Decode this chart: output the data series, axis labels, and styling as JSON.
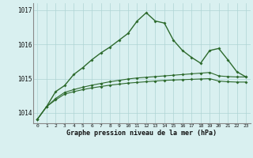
{
  "x": [
    0,
    1,
    2,
    3,
    4,
    5,
    6,
    7,
    8,
    9,
    10,
    11,
    12,
    13,
    14,
    15,
    16,
    17,
    18,
    19,
    20,
    21,
    22,
    23
  ],
  "line_flat1": [
    1013.82,
    1014.18,
    1014.38,
    1014.55,
    1014.62,
    1014.68,
    1014.73,
    1014.77,
    1014.81,
    1014.84,
    1014.87,
    1014.89,
    1014.91,
    1014.93,
    1014.95,
    1014.96,
    1014.97,
    1014.98,
    1014.99,
    1015.0,
    1014.93,
    1014.91,
    1014.9,
    1014.9
  ],
  "line_flat2": [
    1013.82,
    1014.18,
    1014.42,
    1014.6,
    1014.68,
    1014.75,
    1014.81,
    1014.86,
    1014.91,
    1014.95,
    1014.99,
    1015.02,
    1015.04,
    1015.06,
    1015.08,
    1015.1,
    1015.12,
    1015.14,
    1015.16,
    1015.18,
    1015.08,
    1015.06,
    1015.05,
    1015.05
  ],
  "line_peak": [
    1013.82,
    1014.18,
    1014.62,
    1014.8,
    1015.12,
    1015.32,
    1015.55,
    1015.75,
    1015.92,
    1016.12,
    1016.32,
    1016.68,
    1016.92,
    1016.68,
    1016.62,
    1016.12,
    1015.82,
    1015.62,
    1015.45,
    1015.82,
    1015.88,
    1015.55,
    1015.2,
    1015.05
  ],
  "ylim": [
    1013.7,
    1017.2
  ],
  "yticks": [
    1014,
    1015,
    1016,
    1017
  ],
  "bg_color": "#d9f0f0",
  "grid_color": "#afd4d4",
  "line_color_dark": "#2d6a2d",
  "line_color_peak": "#2d6a2d",
  "xlabel": "Graphe pression niveau de la mer (hPa)"
}
